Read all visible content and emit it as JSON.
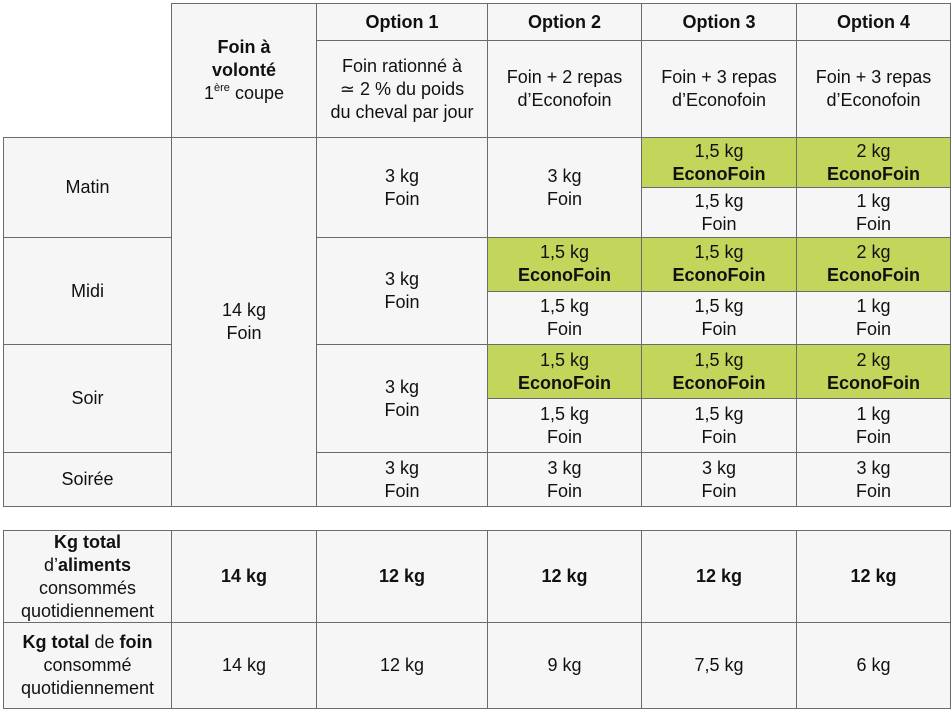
{
  "header": {
    "free_choice": {
      "title": "Foin à volonté",
      "line2_pre": "1",
      "line2_sup": "ère",
      "line2_post": " coupe"
    },
    "options": [
      "Option 1",
      "Option 2",
      "Option 3",
      "Option 4"
    ],
    "descriptions": [
      [
        "Foin rationné à",
        "≃ 2 % du poids",
        "du cheval par jour"
      ],
      [
        "Foin + 2 repas",
        "d’Econofoin"
      ],
      [
        "Foin + 3 repas",
        "d’Econofoin"
      ],
      [
        "Foin + 3 repas",
        "d’Econofoin"
      ]
    ]
  },
  "schedule": {
    "free_choice": {
      "qty": "14 kg",
      "feed": "Foin"
    },
    "rows": [
      {
        "label": "Matin",
        "options": [
          [
            {
              "qty": "3 kg",
              "feed": "Foin"
            }
          ],
          [
            {
              "qty": "3 kg",
              "feed": "Foin"
            }
          ],
          [
            {
              "qty": "1,5 kg",
              "feed": "EconoFoin"
            },
            {
              "qty": "1,5 kg",
              "feed": "Foin"
            }
          ],
          [
            {
              "qty": "2 kg",
              "feed": "EconoFoin"
            },
            {
              "qty": "1 kg",
              "feed": "Foin"
            }
          ]
        ]
      },
      {
        "label": "Midi",
        "options": [
          [
            {
              "qty": "3 kg",
              "feed": "Foin"
            }
          ],
          [
            {
              "qty": "1,5 kg",
              "feed": "EconoFoin"
            },
            {
              "qty": "1,5 kg",
              "feed": "Foin"
            }
          ],
          [
            {
              "qty": "1,5 kg",
              "feed": "EconoFoin"
            },
            {
              "qty": "1,5 kg",
              "feed": "Foin"
            }
          ],
          [
            {
              "qty": "2 kg",
              "feed": "EconoFoin"
            },
            {
              "qty": "1 kg",
              "feed": "Foin"
            }
          ]
        ]
      },
      {
        "label": "Soir",
        "options": [
          [
            {
              "qty": "3 kg",
              "feed": "Foin"
            }
          ],
          [
            {
              "qty": "1,5 kg",
              "feed": "EconoFoin"
            },
            {
              "qty": "1,5 kg",
              "feed": "Foin"
            }
          ],
          [
            {
              "qty": "1,5 kg",
              "feed": "EconoFoin"
            },
            {
              "qty": "1,5 kg",
              "feed": "Foin"
            }
          ],
          [
            {
              "qty": "2 kg",
              "feed": "EconoFoin"
            },
            {
              "qty": "1 kg",
              "feed": "Foin"
            }
          ]
        ]
      },
      {
        "label": "Soirée",
        "options": [
          [
            {
              "qty": "3 kg",
              "feed": "Foin"
            }
          ],
          [
            {
              "qty": "3 kg",
              "feed": "Foin"
            }
          ],
          [
            {
              "qty": "3 kg",
              "feed": "Foin"
            }
          ],
          [
            {
              "qty": "3 kg",
              "feed": "Foin"
            }
          ]
        ]
      }
    ]
  },
  "totals": [
    {
      "label_lines": [
        [
          {
            "t": "Kg total",
            "b": true
          }
        ],
        [
          {
            "t": "d’"
          },
          {
            "t": "aliments",
            "b": true
          }
        ],
        [
          {
            "t": "consommés"
          }
        ],
        [
          {
            "t": "quotidiennement"
          }
        ]
      ],
      "values": [
        "14 kg",
        "12 kg",
        "12 kg",
        "12 kg",
        "12 kg"
      ],
      "bold": true
    },
    {
      "label_lines": [
        [
          {
            "t": "Kg total",
            "b": true
          },
          {
            "t": " de "
          },
          {
            "t": "foin",
            "b": true
          }
        ],
        [
          {
            "t": "consommé"
          }
        ],
        [
          {
            "t": "quotidiennement"
          }
        ]
      ],
      "values": [
        "14 kg",
        "12 kg",
        "9 kg",
        "7,5 kg",
        "6 kg"
      ],
      "bold": false
    }
  ]
}
